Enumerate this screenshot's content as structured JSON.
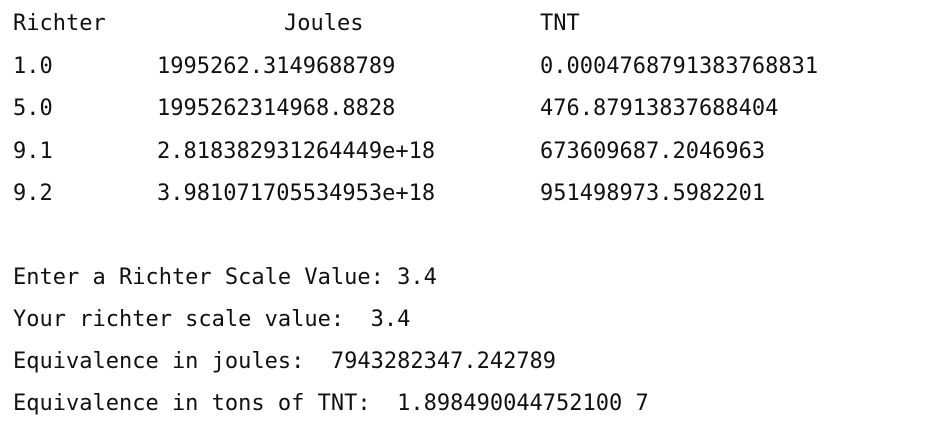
{
  "table": {
    "headers": [
      "Richter",
      "Joules",
      "TNT"
    ],
    "rows": [
      [
        "1.0",
        "1995262.3149688789",
        "0.0004768791383768831"
      ],
      [
        "5.0",
        "1995262314968.8828",
        "476.87913837688404"
      ],
      [
        "9.1",
        "2.818382931264449e+18",
        "673609687.2046963"
      ],
      [
        "9.2",
        "3.981071705534953e+18",
        "951498973.5982201"
      ]
    ]
  },
  "session": {
    "prompt_line": "Enter a Richter Scale Value: 3.4",
    "value_line": "Your richter scale value:  3.4",
    "joules_line": "Equivalence in joules:  7943282347.242789",
    "tnt_line": "Equivalence in tons of TNT:  1.898490044752100 7"
  }
}
